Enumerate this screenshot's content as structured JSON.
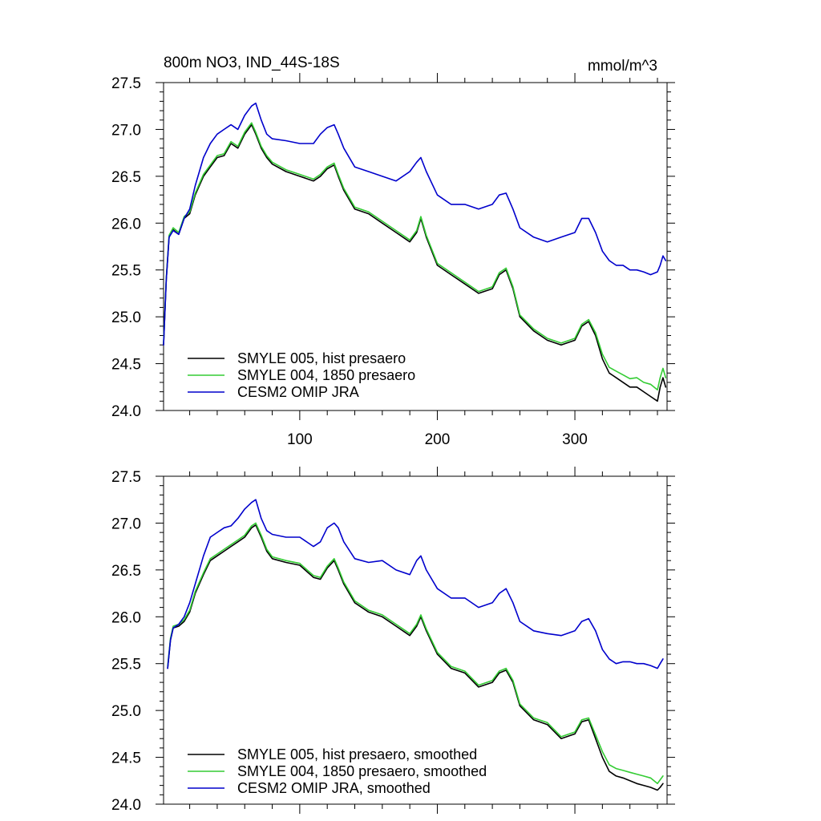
{
  "chart_data": [
    {
      "type": "line",
      "title": "800m NO3, IND_44S-18S",
      "units": "mmol/m^3",
      "xlim": [
        1,
        367
      ],
      "ylim": [
        24.0,
        27.5
      ],
      "xticks": [
        100,
        200,
        300
      ],
      "xtick_labels": [
        "100",
        "200",
        "300"
      ],
      "yticks": [
        24.0,
        24.5,
        25.0,
        25.5,
        26.0,
        26.5,
        27.0,
        27.5
      ],
      "ytick_labels": [
        "24.0",
        "24.5",
        "25.0",
        "25.5",
        "26.0",
        "26.5",
        "27.0",
        "27.5"
      ],
      "legend_position": "bottom-left",
      "series": [
        {
          "name": "SMYLE 005, hist presaero",
          "color": "#000000",
          "x": [
            1,
            3,
            5,
            8,
            12,
            16,
            20,
            24,
            30,
            35,
            40,
            45,
            50,
            55,
            60,
            65,
            68,
            72,
            76,
            80,
            90,
            100,
            110,
            115,
            120,
            125,
            128,
            132,
            140,
            150,
            160,
            170,
            180,
            185,
            188,
            192,
            200,
            210,
            220,
            230,
            240,
            245,
            250,
            255,
            260,
            270,
            280,
            290,
            300,
            305,
            310,
            315,
            320,
            325,
            330,
            335,
            340,
            345,
            350,
            355,
            360,
            362,
            364,
            366
          ],
          "y": [
            24.7,
            25.4,
            25.85,
            25.93,
            25.88,
            26.05,
            26.1,
            26.3,
            26.5,
            26.6,
            26.7,
            26.72,
            26.85,
            26.8,
            26.95,
            27.05,
            26.95,
            26.8,
            26.7,
            26.63,
            26.55,
            26.5,
            26.45,
            26.5,
            26.58,
            26.62,
            26.5,
            26.35,
            26.15,
            26.1,
            26.0,
            25.9,
            25.8,
            25.9,
            26.05,
            25.85,
            25.55,
            25.45,
            25.35,
            25.25,
            25.3,
            25.45,
            25.5,
            25.3,
            25.0,
            24.85,
            24.75,
            24.7,
            24.75,
            24.9,
            24.95,
            24.8,
            24.55,
            24.4,
            24.35,
            24.3,
            24.25,
            24.25,
            24.2,
            24.15,
            24.1,
            24.25,
            24.35,
            24.25
          ]
        },
        {
          "name": "SMYLE 004, 1850 presaero",
          "color": "#33cc33",
          "x": [
            1,
            3,
            5,
            8,
            12,
            16,
            20,
            24,
            30,
            35,
            40,
            45,
            50,
            55,
            60,
            65,
            68,
            72,
            76,
            80,
            90,
            100,
            110,
            115,
            120,
            125,
            128,
            132,
            140,
            150,
            160,
            170,
            180,
            185,
            188,
            192,
            200,
            210,
            220,
            230,
            240,
            245,
            250,
            255,
            260,
            270,
            280,
            290,
            300,
            305,
            310,
            315,
            320,
            325,
            330,
            335,
            340,
            345,
            350,
            355,
            360,
            362,
            364,
            366
          ],
          "y": [
            24.72,
            25.42,
            25.87,
            25.95,
            25.9,
            26.07,
            26.12,
            26.32,
            26.52,
            26.62,
            26.72,
            26.74,
            26.87,
            26.82,
            26.97,
            27.07,
            26.97,
            26.82,
            26.72,
            26.65,
            26.57,
            26.52,
            26.47,
            26.52,
            26.6,
            26.64,
            26.52,
            26.37,
            26.17,
            26.12,
            26.02,
            25.92,
            25.82,
            25.92,
            26.07,
            25.87,
            25.57,
            25.47,
            25.37,
            25.27,
            25.32,
            25.47,
            25.52,
            25.32,
            25.02,
            24.87,
            24.77,
            24.72,
            24.77,
            24.92,
            24.97,
            24.83,
            24.6,
            24.46,
            24.42,
            24.38,
            24.34,
            24.35,
            24.3,
            24.28,
            24.22,
            24.35,
            24.45,
            24.35
          ]
        },
        {
          "name": "CESM2 OMIP JRA",
          "color": "#0000cc",
          "x": [
            1,
            3,
            5,
            8,
            12,
            16,
            20,
            24,
            30,
            35,
            40,
            45,
            50,
            55,
            60,
            65,
            68,
            72,
            76,
            80,
            90,
            100,
            110,
            115,
            120,
            125,
            128,
            132,
            140,
            150,
            160,
            170,
            180,
            185,
            188,
            192,
            200,
            210,
            220,
            230,
            240,
            245,
            250,
            255,
            260,
            270,
            280,
            290,
            300,
            305,
            310,
            315,
            320,
            325,
            330,
            335,
            340,
            345,
            350,
            355,
            360,
            362,
            364,
            366
          ],
          "y": [
            24.7,
            25.4,
            25.85,
            25.92,
            25.88,
            26.05,
            26.15,
            26.4,
            26.7,
            26.85,
            26.95,
            27.0,
            27.05,
            27.0,
            27.15,
            27.25,
            27.28,
            27.1,
            26.95,
            26.9,
            26.88,
            26.85,
            26.85,
            26.95,
            27.02,
            27.05,
            26.95,
            26.8,
            26.6,
            26.55,
            26.5,
            26.45,
            26.55,
            26.65,
            26.7,
            26.55,
            26.3,
            26.2,
            26.2,
            26.15,
            26.2,
            26.3,
            26.32,
            26.15,
            25.95,
            25.85,
            25.8,
            25.85,
            25.9,
            26.05,
            26.05,
            25.9,
            25.7,
            25.6,
            25.55,
            25.55,
            25.5,
            25.5,
            25.48,
            25.45,
            25.48,
            25.55,
            25.65,
            25.6
          ]
        }
      ]
    },
    {
      "type": "line",
      "title": "",
      "units": "",
      "xlim": [
        1,
        367
      ],
      "ylim": [
        24.0,
        27.5
      ],
      "xticks": [
        100,
        200,
        300
      ],
      "xtick_labels": [],
      "yticks": [
        24.0,
        24.5,
        25.0,
        25.5,
        26.0,
        26.5,
        27.0,
        27.5
      ],
      "ytick_labels": [
        "24.0",
        "24.5",
        "25.0",
        "25.5",
        "26.0",
        "26.5",
        "27.0",
        "27.5"
      ],
      "legend_position": "bottom-left",
      "series": [
        {
          "name": "SMYLE 005, hist presaero, smoothed",
          "color": "#000000",
          "x": [
            4,
            6,
            8,
            12,
            16,
            20,
            24,
            30,
            35,
            40,
            45,
            50,
            55,
            60,
            65,
            68,
            72,
            76,
            80,
            90,
            100,
            110,
            115,
            120,
            125,
            128,
            132,
            140,
            150,
            160,
            170,
            180,
            185,
            188,
            192,
            200,
            210,
            220,
            230,
            240,
            245,
            250,
            255,
            260,
            270,
            280,
            290,
            300,
            305,
            310,
            315,
            320,
            325,
            330,
            335,
            340,
            345,
            350,
            355,
            360,
            362,
            364
          ],
          "y": [
            25.45,
            25.75,
            25.88,
            25.9,
            25.95,
            26.05,
            26.25,
            26.45,
            26.6,
            26.65,
            26.7,
            26.75,
            26.8,
            26.85,
            26.95,
            26.98,
            26.85,
            26.7,
            26.62,
            26.58,
            26.55,
            26.42,
            26.4,
            26.52,
            26.6,
            26.5,
            26.35,
            26.15,
            26.05,
            26.0,
            25.9,
            25.8,
            25.9,
            26.0,
            25.85,
            25.6,
            25.45,
            25.4,
            25.25,
            25.3,
            25.4,
            25.43,
            25.3,
            25.05,
            24.9,
            24.85,
            24.7,
            24.75,
            24.88,
            24.9,
            24.7,
            24.5,
            24.35,
            24.3,
            24.28,
            24.25,
            24.22,
            24.2,
            24.18,
            24.15,
            24.18,
            24.22
          ]
        },
        {
          "name": "SMYLE 004, 1850 presaero, smoothed",
          "color": "#33cc33",
          "x": [
            4,
            6,
            8,
            12,
            16,
            20,
            24,
            30,
            35,
            40,
            45,
            50,
            55,
            60,
            65,
            68,
            72,
            76,
            80,
            90,
            100,
            110,
            115,
            120,
            125,
            128,
            132,
            140,
            150,
            160,
            170,
            180,
            185,
            188,
            192,
            200,
            210,
            220,
            230,
            240,
            245,
            250,
            255,
            260,
            270,
            280,
            290,
            300,
            305,
            310,
            315,
            320,
            325,
            330,
            335,
            340,
            345,
            350,
            355,
            360,
            362,
            364
          ],
          "y": [
            25.47,
            25.77,
            25.9,
            25.92,
            25.97,
            26.07,
            26.27,
            26.47,
            26.62,
            26.67,
            26.72,
            26.77,
            26.82,
            26.87,
            26.97,
            27.0,
            26.87,
            26.72,
            26.64,
            26.6,
            26.57,
            26.44,
            26.42,
            26.54,
            26.62,
            26.52,
            26.37,
            26.17,
            26.07,
            26.02,
            25.92,
            25.82,
            25.92,
            26.02,
            25.87,
            25.62,
            25.47,
            25.42,
            25.27,
            25.32,
            25.42,
            25.45,
            25.32,
            25.07,
            24.92,
            24.87,
            24.72,
            24.77,
            24.9,
            24.92,
            24.74,
            24.56,
            24.42,
            24.38,
            24.36,
            24.34,
            24.32,
            24.3,
            24.28,
            24.22,
            24.26,
            24.3
          ]
        },
        {
          "name": "CESM2 OMIP JRA, smoothed",
          "color": "#0000cc",
          "x": [
            4,
            6,
            8,
            12,
            16,
            20,
            24,
            30,
            35,
            40,
            45,
            50,
            55,
            60,
            65,
            68,
            72,
            76,
            80,
            90,
            100,
            110,
            115,
            120,
            125,
            128,
            132,
            140,
            150,
            160,
            170,
            180,
            185,
            188,
            192,
            200,
            210,
            220,
            230,
            240,
            245,
            250,
            255,
            260,
            270,
            280,
            290,
            300,
            305,
            310,
            315,
            320,
            325,
            330,
            335,
            340,
            345,
            350,
            355,
            360,
            362,
            364
          ],
          "y": [
            25.45,
            25.75,
            25.88,
            25.92,
            26.0,
            26.15,
            26.35,
            26.65,
            26.85,
            26.9,
            26.95,
            26.97,
            27.05,
            27.15,
            27.22,
            27.25,
            27.05,
            26.92,
            26.88,
            26.85,
            26.85,
            26.75,
            26.8,
            26.95,
            27.0,
            26.95,
            26.8,
            26.62,
            26.58,
            26.6,
            26.5,
            26.45,
            26.6,
            26.65,
            26.5,
            26.3,
            26.2,
            26.2,
            26.1,
            26.15,
            26.25,
            26.3,
            26.15,
            25.95,
            25.85,
            25.82,
            25.8,
            25.85,
            25.95,
            25.98,
            25.85,
            25.65,
            25.55,
            25.5,
            25.52,
            25.52,
            25.5,
            25.5,
            25.48,
            25.45,
            25.5,
            25.55
          ]
        }
      ]
    }
  ]
}
